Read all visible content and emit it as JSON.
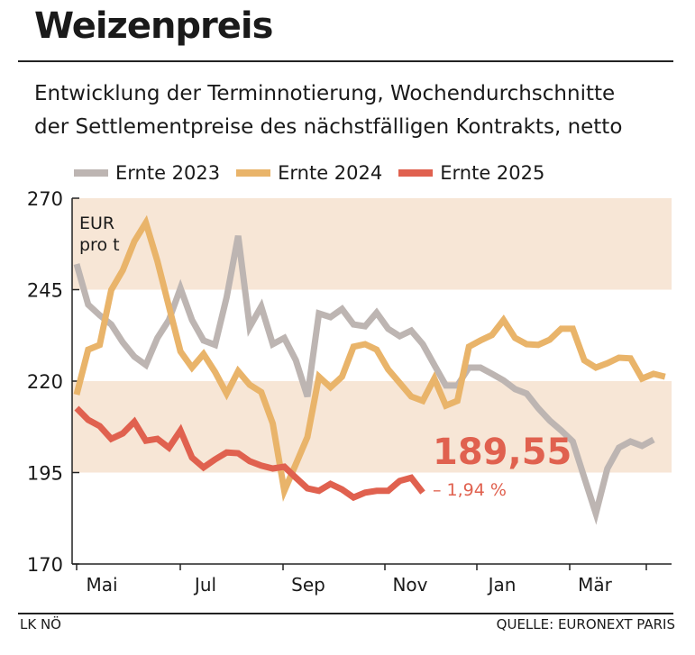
{
  "header": {
    "title": "Weizenpreis",
    "subtitle_line1": "Entwicklung der Terminnotierung, Wochendurchschnitte",
    "subtitle_line2": "der Settlementpreise des nächstfälligen Kontrakts, netto"
  },
  "footer": {
    "left": "LK NÖ",
    "right": "QUELLE: EURONEXT PARIS"
  },
  "chart_data": {
    "type": "line",
    "unit_label_line1": "EUR",
    "unit_label_line2": "pro t",
    "ylim": [
      170,
      270
    ],
    "yticks": [
      170,
      195,
      220,
      245,
      270
    ],
    "xticks": [
      "Mai",
      "Jul",
      "Sep",
      "Nov",
      "Jan",
      "Mär"
    ],
    "band_color": "#f7e6d6",
    "annotation_value": "189,55",
    "annotation_change": "– 1,94 %",
    "series": [
      {
        "name": "Ernte 2023",
        "color": "#bdb5b2",
        "values": [
          252.0,
          240.9,
          238.0,
          235.5,
          230.6,
          226.7,
          224.4,
          231.8,
          236.7,
          245.4,
          236.7,
          231.1,
          229.9,
          242.9,
          259.7,
          234.8,
          240.4,
          230.1,
          231.8,
          225.7,
          215.8,
          238.5,
          237.5,
          239.7,
          235.5,
          235.0,
          238.7,
          234.3,
          232.3,
          233.8,
          230.1,
          224.4,
          218.8,
          218.8,
          223.7,
          223.7,
          222.0,
          220.2,
          217.8,
          216.6,
          212.6,
          209.2,
          206.5,
          203.5,
          193.6,
          183.8,
          196.1,
          201.8,
          203.5,
          202.3,
          204.0
        ]
      },
      {
        "name": "Ernte 2024",
        "color": "#e9b46a",
        "values": [
          216.3,
          228.6,
          229.9,
          244.9,
          250.3,
          258.2,
          263.3,
          252.8,
          240.4,
          228.1,
          223.7,
          227.4,
          222.5,
          216.6,
          222.7,
          219.0,
          217.0,
          208.4,
          190.0,
          197.3,
          204.7,
          221.2,
          218.3,
          221.2,
          229.4,
          230.1,
          228.6,
          223.2,
          219.5,
          215.8,
          214.6,
          220.7,
          213.3,
          214.6,
          229.4,
          231.1,
          232.6,
          236.7,
          231.8,
          230.1,
          229.9,
          231.3,
          234.3,
          234.3,
          225.7,
          223.7,
          224.9,
          226.4,
          226.2,
          220.7,
          222.0,
          221.2
        ]
      },
      {
        "name": "Ernte 2025",
        "color": "#e0614f",
        "values": [
          212.6,
          209.4,
          207.7,
          204.2,
          205.7,
          208.9,
          203.7,
          204.2,
          201.8,
          206.5,
          199.1,
          196.4,
          198.6,
          200.5,
          200.3,
          198.1,
          196.9,
          196.1,
          196.6,
          193.6,
          190.7,
          190.0,
          191.9,
          190.4,
          188.2,
          189.5,
          190.0,
          190.0,
          192.7,
          193.6,
          189.55
        ]
      }
    ]
  }
}
